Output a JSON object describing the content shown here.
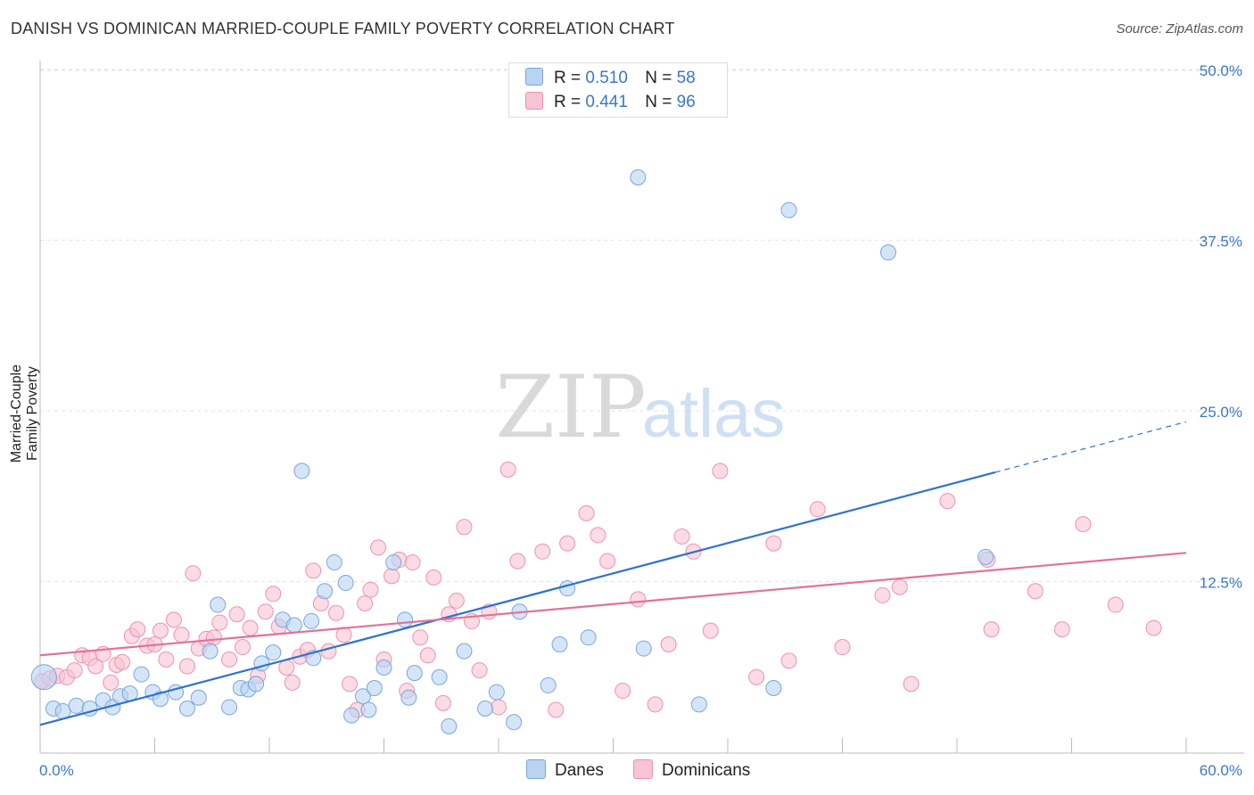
{
  "header": {
    "title": "DANISH VS DOMINICAN MARRIED-COUPLE FAMILY POVERTY CORRELATION CHART",
    "source": "Source: ZipAtlas.com"
  },
  "watermark": {
    "zip": "ZIP",
    "atlas": "atlas"
  },
  "colors": {
    "danes_fill": "#b9d3f3",
    "danes_stroke": "#7aa6dd",
    "danes_line": "#2f72cf",
    "dominicans_fill": "#f8c3d2",
    "dominicans_stroke": "#ee93ae",
    "dominicans_line": "#e2729a",
    "axis_value": "#3b78c8"
  },
  "legend": {
    "rows": [
      {
        "r_label": "R =",
        "r_value": "0.510",
        "n_label": "N =",
        "n_value": "58"
      },
      {
        "r_label": "R =",
        "r_value": "0.441",
        "n_label": "N =",
        "n_value": "96"
      }
    ],
    "series_names": [
      "Danes",
      "Dominicans"
    ]
  },
  "chart_data": {
    "type": "scatter",
    "title": "DANISH VS DOMINICAN MARRIED-COUPLE FAMILY POVERTY CORRELATION CHART",
    "xlabel": "",
    "ylabel": "Married-Couple Family Poverty",
    "xlim": [
      0,
      60
    ],
    "ylim": [
      0,
      52
    ],
    "x_tick_labels": [
      "0.0%",
      "60.0%"
    ],
    "y_ticks": [
      12.5,
      25.0,
      37.5,
      50.0
    ],
    "y_tick_labels": [
      "12.5%",
      "25.0%",
      "37.5%",
      "50.0%"
    ],
    "grid": true,
    "series": [
      {
        "name": "Danes",
        "r": 0.51,
        "n": 58,
        "trend": {
          "x0": 0,
          "y0": 2.0,
          "x1": 50,
          "y1": 20.5,
          "dash_to_x": 60,
          "dash_to_y": 24.2
        },
        "points": [
          [
            0.2,
            5.5
          ],
          [
            0.7,
            3.2
          ],
          [
            1.2,
            3.0
          ],
          [
            1.9,
            3.4
          ],
          [
            2.6,
            3.2
          ],
          [
            3.3,
            3.8
          ],
          [
            3.8,
            3.3
          ],
          [
            4.2,
            4.1
          ],
          [
            4.7,
            4.3
          ],
          [
            5.3,
            5.7
          ],
          [
            5.9,
            4.4
          ],
          [
            6.3,
            3.9
          ],
          [
            7.1,
            4.4
          ],
          [
            7.7,
            3.2
          ],
          [
            8.3,
            4.0
          ],
          [
            8.9,
            7.4
          ],
          [
            9.3,
            10.8
          ],
          [
            9.9,
            3.3
          ],
          [
            10.5,
            4.7
          ],
          [
            10.9,
            4.6
          ],
          [
            11.3,
            5.0
          ],
          [
            11.6,
            6.5
          ],
          [
            12.2,
            7.3
          ],
          [
            12.7,
            9.7
          ],
          [
            13.3,
            9.3
          ],
          [
            13.7,
            20.6
          ],
          [
            14.2,
            9.6
          ],
          [
            14.3,
            6.9
          ],
          [
            14.9,
            11.8
          ],
          [
            15.4,
            13.9
          ],
          [
            16.0,
            12.4
          ],
          [
            16.3,
            2.7
          ],
          [
            16.9,
            4.1
          ],
          [
            17.2,
            3.1
          ],
          [
            17.5,
            4.7
          ],
          [
            18.0,
            6.2
          ],
          [
            18.5,
            13.9
          ],
          [
            19.1,
            9.7
          ],
          [
            19.3,
            4.0
          ],
          [
            19.6,
            5.8
          ],
          [
            20.9,
            5.5
          ],
          [
            21.4,
            1.9
          ],
          [
            22.2,
            7.4
          ],
          [
            23.3,
            3.2
          ],
          [
            23.9,
            4.4
          ],
          [
            24.8,
            2.2
          ],
          [
            25.1,
            10.3
          ],
          [
            26.6,
            4.9
          ],
          [
            27.2,
            7.9
          ],
          [
            27.6,
            12.0
          ],
          [
            28.7,
            8.4
          ],
          [
            31.3,
            42.1
          ],
          [
            31.6,
            7.6
          ],
          [
            34.5,
            3.5
          ],
          [
            38.4,
            4.7
          ],
          [
            39.2,
            39.7
          ],
          [
            44.4,
            36.6
          ],
          [
            49.5,
            14.3
          ]
        ]
      },
      {
        "name": "Dominicans",
        "r": 0.441,
        "n": 96,
        "trend": {
          "x0": 0,
          "y0": 7.1,
          "x1": 60,
          "y1": 14.6
        },
        "points": [
          [
            0.1,
            5.2
          ],
          [
            0.5,
            5.4
          ],
          [
            0.9,
            5.6
          ],
          [
            1.4,
            5.5
          ],
          [
            1.8,
            6.0
          ],
          [
            2.2,
            7.1
          ],
          [
            2.6,
            6.9
          ],
          [
            2.9,
            6.3
          ],
          [
            3.3,
            7.2
          ],
          [
            3.7,
            5.1
          ],
          [
            4.0,
            6.4
          ],
          [
            4.3,
            6.6
          ],
          [
            4.8,
            8.5
          ],
          [
            5.1,
            9.0
          ],
          [
            5.6,
            7.8
          ],
          [
            6.0,
            7.9
          ],
          [
            6.3,
            8.9
          ],
          [
            6.6,
            6.8
          ],
          [
            7.0,
            9.7
          ],
          [
            7.4,
            8.6
          ],
          [
            7.7,
            6.3
          ],
          [
            8.0,
            13.1
          ],
          [
            8.3,
            7.6
          ],
          [
            8.7,
            8.3
          ],
          [
            9.1,
            8.4
          ],
          [
            9.4,
            9.5
          ],
          [
            9.9,
            6.8
          ],
          [
            10.3,
            10.1
          ],
          [
            10.6,
            7.7
          ],
          [
            11.0,
            9.1
          ],
          [
            11.4,
            5.6
          ],
          [
            11.8,
            10.3
          ],
          [
            12.2,
            11.6
          ],
          [
            12.5,
            9.2
          ],
          [
            12.9,
            6.2
          ],
          [
            13.2,
            5.1
          ],
          [
            13.6,
            7.0
          ],
          [
            14.0,
            7.5
          ],
          [
            14.3,
            13.3
          ],
          [
            14.7,
            10.9
          ],
          [
            15.1,
            7.4
          ],
          [
            15.5,
            10.2
          ],
          [
            15.9,
            8.6
          ],
          [
            16.2,
            5.0
          ],
          [
            16.6,
            3.1
          ],
          [
            17.0,
            10.9
          ],
          [
            17.3,
            11.9
          ],
          [
            17.7,
            15.0
          ],
          [
            18.0,
            6.8
          ],
          [
            18.4,
            12.9
          ],
          [
            18.8,
            14.1
          ],
          [
            19.2,
            4.5
          ],
          [
            19.5,
            13.9
          ],
          [
            19.9,
            8.4
          ],
          [
            20.3,
            7.1
          ],
          [
            20.6,
            12.8
          ],
          [
            21.1,
            3.6
          ],
          [
            21.4,
            10.1
          ],
          [
            21.8,
            11.1
          ],
          [
            22.2,
            16.5
          ],
          [
            22.6,
            9.6
          ],
          [
            23.0,
            6.0
          ],
          [
            23.5,
            10.3
          ],
          [
            24.0,
            3.3
          ],
          [
            24.5,
            20.7
          ],
          [
            25.0,
            14.0
          ],
          [
            26.3,
            14.7
          ],
          [
            27.0,
            3.1
          ],
          [
            27.6,
            15.3
          ],
          [
            28.6,
            17.5
          ],
          [
            29.2,
            15.9
          ],
          [
            29.7,
            14.0
          ],
          [
            30.5,
            4.5
          ],
          [
            31.3,
            11.2
          ],
          [
            32.2,
            3.5
          ],
          [
            32.9,
            7.9
          ],
          [
            33.6,
            15.8
          ],
          [
            34.2,
            14.7
          ],
          [
            35.1,
            8.9
          ],
          [
            35.6,
            20.6
          ],
          [
            37.5,
            5.5
          ],
          [
            38.4,
            15.3
          ],
          [
            39.2,
            6.7
          ],
          [
            40.7,
            17.8
          ],
          [
            42.0,
            7.7
          ],
          [
            44.1,
            11.5
          ],
          [
            45.0,
            12.1
          ],
          [
            45.6,
            5.0
          ],
          [
            47.5,
            18.4
          ],
          [
            49.6,
            14.1
          ],
          [
            49.8,
            9.0
          ],
          [
            52.1,
            11.8
          ],
          [
            53.5,
            9.0
          ],
          [
            54.6,
            16.7
          ],
          [
            56.3,
            10.8
          ],
          [
            58.3,
            9.1
          ]
        ]
      }
    ]
  }
}
